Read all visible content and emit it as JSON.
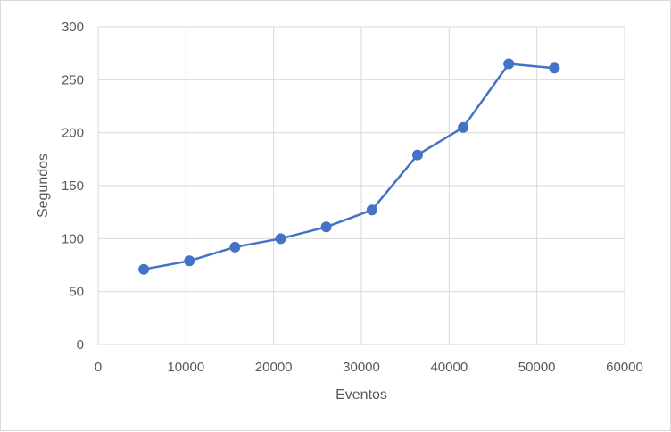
{
  "chart_data": {
    "type": "scatter",
    "xlabel": "Eventos",
    "ylabel": "Segundos",
    "xlim": [
      0,
      60000
    ],
    "ylim": [
      0,
      300
    ],
    "x_ticks": [
      0,
      10000,
      20000,
      30000,
      40000,
      50000,
      60000
    ],
    "y_ticks": [
      0,
      50,
      100,
      150,
      200,
      250,
      300
    ],
    "grid": true,
    "legend": "none",
    "series": [
      {
        "color": "#4472c4",
        "x": [
          5200,
          10400,
          15600,
          20800,
          26000,
          31200,
          36400,
          41600,
          46800,
          52000
        ],
        "y": [
          71,
          79,
          92,
          100,
          111,
          127,
          179,
          205,
          265,
          261
        ]
      }
    ]
  }
}
